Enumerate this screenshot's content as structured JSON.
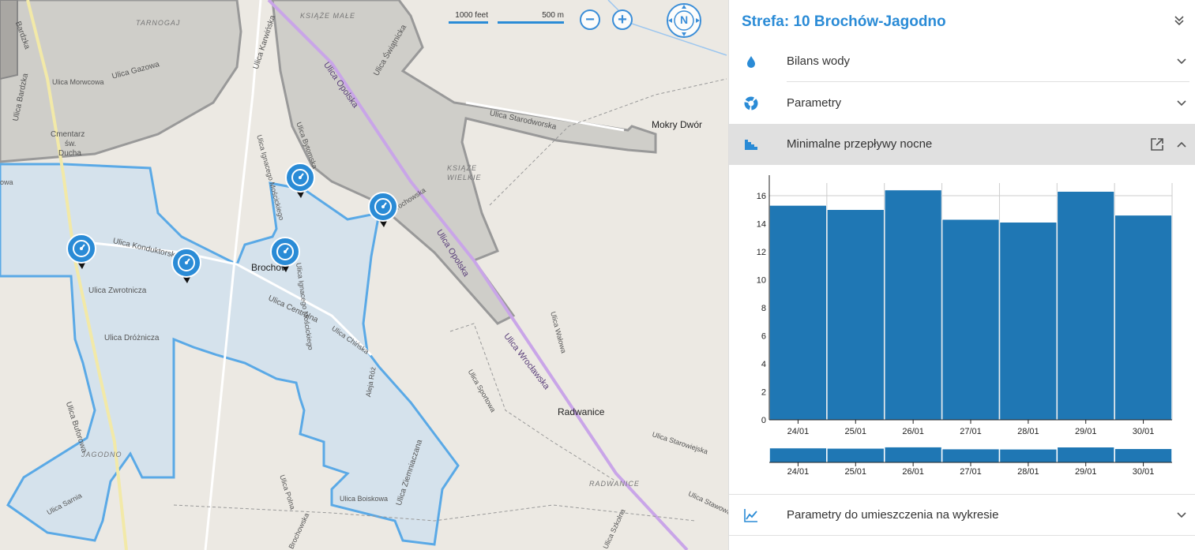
{
  "map": {
    "scale_feet": "1000 feet",
    "scale_m": "500 m",
    "compass_label": "N",
    "labels": {
      "tarnogaj": "TARNOGAJ",
      "ksiaze_male": "KSIĄŻE MAŁE",
      "ksiaze_wielkie_1": "KSIĄŻE",
      "ksiaze_wielkie_2": "WIELKIE",
      "jagodno": "JAGODNO",
      "radwanice_place": "RADWANICE",
      "mokry_dwor": "Mokry Dwór",
      "radwanice": "Radwanice",
      "brochow": "Brochów",
      "cmentarz_1": "Cmentarz",
      "cmentarz_2": "św.",
      "cmentarz_3": "Ducha",
      "ul_bardzka": "Ulica Bardzka",
      "ul_bardzka_top": "Bardzka",
      "ul_morwcowa": "Ulica Morwcowa",
      "ul_gazowa": "Ulica Gazowa",
      "ul_karwinska": "Ulica Karwińska",
      "ul_swiatnicka": "Ulica Świątnicka",
      "ul_opolska": "Ulica Opolska",
      "ul_opolska2": "Ulica Opolska",
      "ul_bytomska": "Ulica Bytomska",
      "ul_moscickiego": "Ulica Ignacego Mościckiego",
      "ul_moscickiego2": "Ulica Ignacego Mościckiego",
      "ul_starodworska": "Ulica Starodworska",
      "ul_brochowska": "Ulica Brochowska",
      "ul_konduktorska": "Ulica Konduktorska",
      "ul_zwrotnicza": "Ulica Zwrotnicza",
      "ul_centralna": "Ulica Centralna",
      "ul_chinska": "Ulica Chińska",
      "ul_droznicza": "Ulica Dróżnicza",
      "ul_buforowa": "Ulica Buforowa",
      "aleja_roz": "Aleja Róż",
      "ul_ziemniaczana": "Ulica Ziemniaczana",
      "ul_wroclawska": "Ulica Wrocławska",
      "ul_walowa": "Ulica Wałowa",
      "ul_sportowa": "Ulica Sportowa",
      "ul_starowiejska": "Ulica Starowiejska",
      "ul_polna": "Ulica Polna",
      "ul_sarnia": "Ulica Sarnia",
      "ul_boiskowa": "Ulica Boiskowa",
      "ul_brochowska_bottom": "Brochowska",
      "ul_szkolna": "Ulica Szkolna",
      "ul_stawowa": "Ulica Stawowa",
      "partial_wa": "owa"
    }
  },
  "panel": {
    "zone_title": "Strefa: 10 Brochów-Jagodno",
    "sections": {
      "bilans": "Bilans wody",
      "parametry": "Parametry",
      "przeplywy": "Minimalne przepływy nocne",
      "wykres": "Parametry do umieszczenia na wykresie"
    }
  },
  "colors": {
    "accent": "#2a8bd6",
    "bar": "#1f77b4",
    "zone_fill": "#cfe0ee",
    "zone_stroke": "#5aa9e6",
    "gray_zone": "#c9c7c3"
  },
  "chart_data": {
    "type": "bar",
    "categories": [
      "24/01",
      "25/01",
      "26/01",
      "27/01",
      "28/01",
      "29/01",
      "30/01"
    ],
    "values": [
      15.3,
      15.0,
      16.4,
      14.3,
      14.1,
      16.3,
      14.6
    ],
    "yticks": [
      "0",
      "2",
      "4",
      "6",
      "8",
      "10",
      "12",
      "14",
      "16"
    ],
    "ylim": [
      0,
      16.9
    ],
    "grid": true,
    "navigator": true
  }
}
